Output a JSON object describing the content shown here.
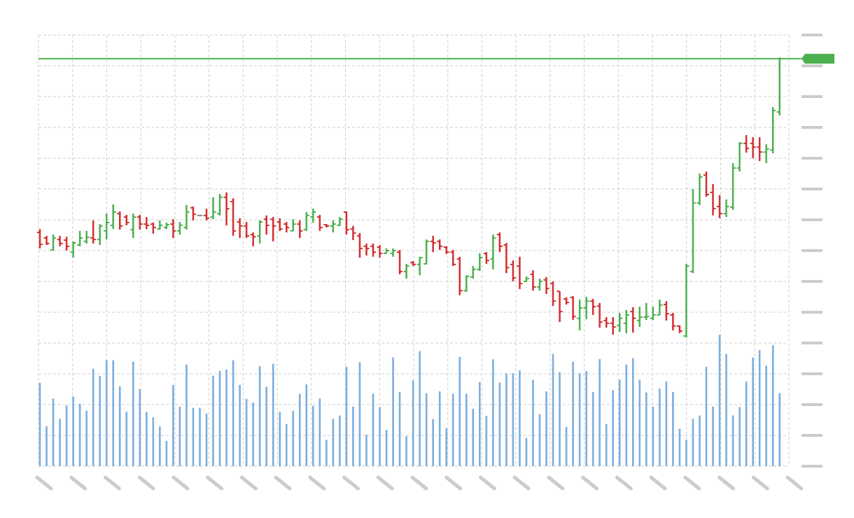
{
  "chart_data": {
    "type": "ohlc",
    "title": "",
    "xlabel": "",
    "ylabel": "",
    "grid": true,
    "axis_labels_visible": false,
    "price_ylim": [
      -40,
      100
    ],
    "volume_ylim": [
      0,
      100
    ],
    "ohlc": [
      [
        35.9,
        37,
        30.7,
        32
      ],
      [
        34.1,
        34.8,
        31.8,
        32.3
      ],
      [
        30.2,
        35.2,
        30,
        34.1
      ],
      [
        33.6,
        34.8,
        31.4,
        32.3
      ],
      [
        33.4,
        34.5,
        30,
        31.4
      ],
      [
        29.5,
        33,
        27.7,
        32.5
      ],
      [
        31.8,
        36.4,
        31.4,
        34.1
      ],
      [
        33,
        36.4,
        32.3,
        34.3
      ],
      [
        34.1,
        39.8,
        32.3,
        33.6
      ],
      [
        33.6,
        38.6,
        31.8,
        38
      ],
      [
        36.4,
        42,
        33.6,
        39.1
      ],
      [
        38.2,
        45,
        37,
        42.5
      ],
      [
        42,
        42.7,
        36.8,
        38
      ],
      [
        40.9,
        41.6,
        38.2,
        39.1
      ],
      [
        36.8,
        42,
        34.1,
        40.9
      ],
      [
        40.9,
        41.6,
        36.8,
        38.6
      ],
      [
        38.6,
        40.9,
        37,
        38.2
      ],
      [
        38.6,
        39.1,
        35.5,
        37.5
      ],
      [
        37,
        39.8,
        36.8,
        38.2
      ],
      [
        37.5,
        39.1,
        37,
        38.4
      ],
      [
        38.6,
        40.2,
        34.1,
        36.4
      ],
      [
        36.4,
        39.3,
        35.2,
        38.2
      ],
      [
        37.5,
        44.8,
        36.8,
        42.5
      ],
      [
        43.9,
        44.3,
        39.8,
        41.8
      ],
      [
        41.4,
        41.4,
        41.4,
        41.4
      ],
      [
        41.4,
        43.6,
        39.8,
        40.5
      ],
      [
        40.9,
        47.3,
        40.2,
        42.5
      ],
      [
        42,
        48.4,
        41.4,
        47.3
      ],
      [
        47.3,
        48.9,
        38.2,
        43.6
      ],
      [
        45.9,
        47,
        34.8,
        36.4
      ],
      [
        39.3,
        40.5,
        34.1,
        38
      ],
      [
        38,
        39.3,
        34.1,
        34.8
      ],
      [
        35.2,
        35.9,
        31.4,
        34.5
      ],
      [
        34.8,
        39.8,
        32.3,
        39.3
      ],
      [
        40.2,
        41.4,
        35.2,
        38.2
      ],
      [
        40.2,
        40.9,
        33,
        38
      ],
      [
        39.3,
        40.5,
        36.4,
        37
      ],
      [
        38.6,
        39.3,
        35.9,
        37.5
      ],
      [
        36.4,
        40.2,
        36.4,
        38.6
      ],
      [
        38.6,
        39.8,
        34.1,
        36.4
      ],
      [
        36.8,
        42.5,
        36.4,
        41.4
      ],
      [
        40.9,
        43.6,
        39.1,
        42.5
      ],
      [
        40.9,
        41.6,
        36.4,
        37.5
      ],
      [
        38.4,
        38.6,
        37.5,
        38
      ],
      [
        38,
        39.8,
        35.9,
        38.6
      ],
      [
        38.2,
        40.9,
        38,
        40.2
      ],
      [
        42.5,
        42.7,
        35.2,
        36.8
      ],
      [
        37,
        38,
        33.4,
        35.7
      ],
      [
        34.8,
        35.7,
        27.7,
        30.7
      ],
      [
        31.4,
        32.3,
        28.4,
        30.7
      ],
      [
        31.4,
        32.3,
        28,
        29.5
      ],
      [
        31.1,
        31.8,
        27.7,
        29.1
      ],
      [
        29.1,
        30.7,
        29.1,
        30
      ],
      [
        29.1,
        30.7,
        28,
        30
      ],
      [
        29.5,
        30.2,
        22.3,
        23.2
      ],
      [
        23.2,
        25.7,
        20.9,
        25
      ],
      [
        26.1,
        26.6,
        25,
        25.5
      ],
      [
        25.5,
        28,
        22,
        27.7
      ],
      [
        25.7,
        33.6,
        25.5,
        33
      ],
      [
        33,
        34.8,
        29.5,
        32.5
      ],
      [
        33,
        33.6,
        30.2,
        31.4
      ],
      [
        31.1,
        31.4,
        28.9,
        29.5
      ],
      [
        29.5,
        30.2,
        25,
        25.5
      ],
      [
        27.3,
        28,
        15.5,
        17
      ],
      [
        17,
        22,
        16.6,
        21.6
      ],
      [
        21.4,
        25,
        20.9,
        23.9
      ],
      [
        23.9,
        29.1,
        23.4,
        27.7
      ],
      [
        29.1,
        29.5,
        25.7,
        26.8
      ],
      [
        27.3,
        35.2,
        23.9,
        34.1
      ],
      [
        35.2,
        35.9,
        29.5,
        31.4
      ],
      [
        31.8,
        32.5,
        22.7,
        24.5
      ],
      [
        25.5,
        26.8,
        20,
        21.1
      ],
      [
        25,
        28,
        17.5,
        19.3
      ],
      [
        20,
        21.6,
        19.8,
        20.9
      ],
      [
        22.3,
        23.6,
        17,
        18.2
      ],
      [
        18.2,
        20.9,
        17,
        20
      ],
      [
        20.5,
        21.4,
        15.9,
        17.7
      ],
      [
        19.3,
        20,
        12,
        13.6
      ],
      [
        16.8,
        16.8,
        6.8,
        10.2
      ],
      [
        14.3,
        14.8,
        12.5,
        13.2
      ],
      [
        14.8,
        15.2,
        7.5,
        8.6
      ],
      [
        8,
        14.1,
        4.1,
        11.4
      ],
      [
        11.4,
        15,
        7.7,
        13.6
      ],
      [
        13.6,
        14.3,
        9.1,
        11.8
      ],
      [
        12,
        13,
        5,
        6.8
      ],
      [
        7.3,
        8.4,
        5,
        6.4
      ],
      [
        6.4,
        8.4,
        2.7,
        5.2
      ],
      [
        5.7,
        9.8,
        3.6,
        8
      ],
      [
        6.4,
        10.7,
        3.2,
        9.1
      ],
      [
        10.2,
        11.6,
        3.4,
        8
      ],
      [
        7.3,
        11.8,
        5.2,
        8.4
      ],
      [
        8.4,
        13,
        7.5,
        8.6
      ],
      [
        8,
        11.8,
        7.5,
        9.1
      ],
      [
        9.1,
        14.1,
        9.1,
        12.3
      ],
      [
        12.5,
        13.6,
        7.3,
        9.5
      ],
      [
        9.1,
        9.8,
        4.1,
        5.5
      ],
      [
        5.5,
        5.7,
        3.2,
        3.9
      ],
      [
        2.3,
        25.7,
        1.8,
        25
      ],
      [
        23.2,
        50,
        22.7,
        45.5
      ],
      [
        45.5,
        55,
        44.8,
        53.9
      ],
      [
        54.5,
        55.7,
        47.5,
        48.2
      ],
      [
        48.9,
        51.6,
        41.4,
        43.6
      ],
      [
        44.3,
        48,
        40.5,
        42
      ],
      [
        42,
        46.6,
        40.9,
        44.3
      ],
      [
        44.1,
        58.4,
        43.2,
        56.8
      ],
      [
        56.8,
        65.2,
        55.7,
        64.8
      ],
      [
        64.8,
        67.5,
        61.8,
        63.2
      ],
      [
        64.8,
        66.8,
        60,
        63.6
      ],
      [
        63.6,
        66.8,
        59.1,
        62
      ],
      [
        62,
        64.5,
        58.4,
        63
      ],
      [
        62.7,
        76.6,
        61.6,
        75.5
      ],
      [
        75,
        92.7,
        73.9,
        92.3
      ]
    ],
    "volume": [
      67.7,
      32.3,
      55,
      38.5,
      49.3,
      56.5,
      50.7,
      45.2,
      79.1,
      73.4,
      86,
      86,
      64.9,
      44.2,
      84.8,
      62.6,
      44.2,
      39.5,
      32.3,
      20.5,
      66,
      48.4,
      82.5,
      47.4,
      47.4,
      42.7,
      73.4,
      77.4,
      78.4,
      86,
      66,
      54.6,
      51.6,
      81.2,
      64.5,
      83.1,
      44.2,
      34.2,
      45,
      58.8,
      66.4,
      49,
      55,
      21.4,
      38.5,
      41.2,
      80.6,
      48.4,
      84.4,
      25.6,
      58.8,
      48,
      29.4,
      88.2,
      60.3,
      24.3,
      69.6,
      93.4,
      59.2,
      38.3,
      60.7,
      30.7,
      58.8,
      88.8,
      58.8,
      46.5,
      68.3,
      40.8,
      86.7,
      67.9,
      75.3,
      75.5,
      77.8,
      22.8,
      70.2,
      42.3,
      60.7,
      91.1,
      76.3,
      31.9,
      84.8,
      75.5,
      77.2,
      60.3,
      86.9,
      34.2,
      61.7,
      70.2,
      82.5,
      87.7,
      70.2,
      59.8,
      48.4,
      63,
      68.7,
      60.3,
      30.4,
      21.3,
      38.5,
      41.2,
      80.6,
      48.4,
      106.6,
      91.1,
      41.2,
      48,
      68.7,
      88.2,
      94.3,
      81.6,
      98.1,
      59.4
    ],
    "last_price": 92.3,
    "colors": {
      "up": "#4cb050",
      "down": "#d32f2f",
      "unchanged": "#888888",
      "volume": "#7aaede",
      "last_price_line": "#4cb050",
      "grid": "#cfcfcf",
      "axis_label_placeholder": "#cccccc"
    }
  }
}
